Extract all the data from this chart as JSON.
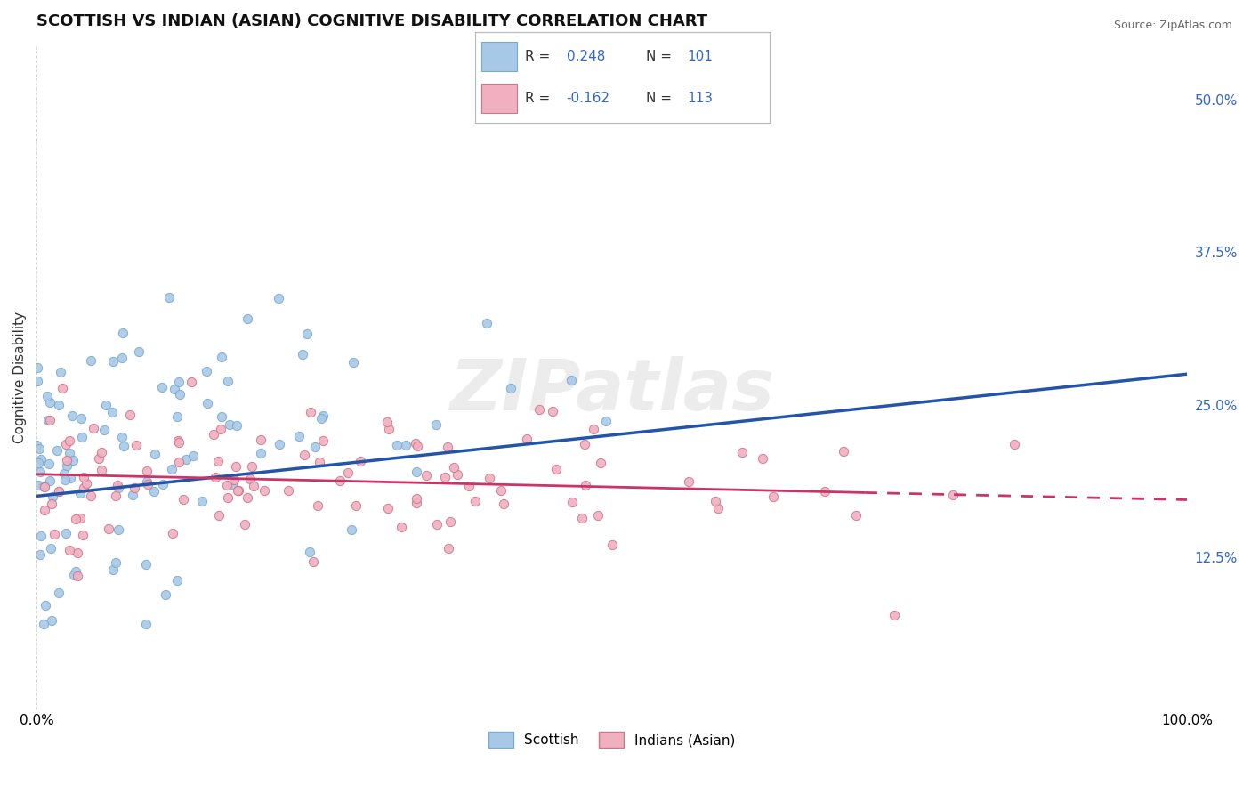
{
  "title": "SCOTTISH VS INDIAN (ASIAN) COGNITIVE DISABILITY CORRELATION CHART",
  "source": "Source: ZipAtlas.com",
  "ylabel": "Cognitive Disability",
  "xlim": [
    0,
    1
  ],
  "ylim": [
    0.0,
    0.545
  ],
  "x_tick_labels": [
    "0.0%",
    "100.0%"
  ],
  "y_ticks": [
    0.125,
    0.25,
    0.375,
    0.5
  ],
  "y_tick_labels": [
    "12.5%",
    "25.0%",
    "37.5%",
    "50.0%"
  ],
  "sc_color": "#a8c8e8",
  "sc_edge": "#7aaacc",
  "in_color": "#f0b0c0",
  "in_edge": "#cc7788",
  "sc_line_color": "#2255aa",
  "in_line_color": "#cc3366",
  "sc_line_y0": 0.175,
  "sc_line_y1": 0.275,
  "in_line_y0": 0.193,
  "in_line_y1": 0.172,
  "in_line_solid_end": 0.72,
  "background_color": "#ffffff",
  "grid_color": "#cccccc",
  "title_fontsize": 13,
  "watermark": "ZIPatlas",
  "legend_color": "#3366cc",
  "R_sc": 0.248,
  "N_sc": 101,
  "R_in": -0.162,
  "N_in": 113,
  "sc_seed": 42,
  "in_seed": 99
}
